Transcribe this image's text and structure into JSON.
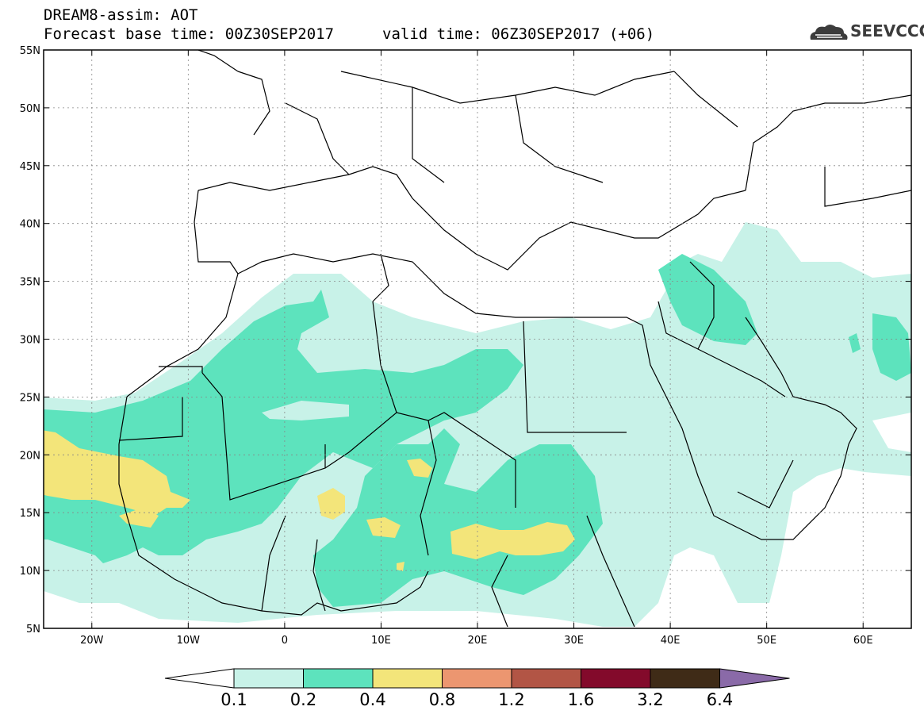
{
  "header": {
    "title": "DREAM8-assim: AOT",
    "base_time": "Forecast base time: 00Z30SEP2017",
    "valid_time": "valid time: 06Z30SEP2017 (+06)"
  },
  "logo": {
    "text": "SEEVCCC",
    "icon": "cloud-icon"
  },
  "map": {
    "lon_range": [
      -25,
      65
    ],
    "lat_range": [
      5,
      55
    ],
    "lat_ticks": [
      "5N",
      "10N",
      "15N",
      "20N",
      "25N",
      "30N",
      "35N",
      "40N",
      "45N",
      "50N",
      "55N"
    ],
    "lon_ticks": [
      "20W",
      "10W",
      "0",
      "10E",
      "20E",
      "30E",
      "40E",
      "50E",
      "60E"
    ]
  },
  "legend": {
    "levels": [
      "0.1",
      "0.2",
      "0.4",
      "0.8",
      "1.2",
      "1.6",
      "3.2",
      "6.4"
    ],
    "colors": [
      "#c8f2e8",
      "#5de3bd",
      "#f3e57a",
      "#ec9670",
      "#b25545",
      "#830a2b",
      "#3f2b17",
      "#8a6aa8"
    ],
    "under_color": "#ffffff",
    "over_color": "#8a6aa8"
  }
}
